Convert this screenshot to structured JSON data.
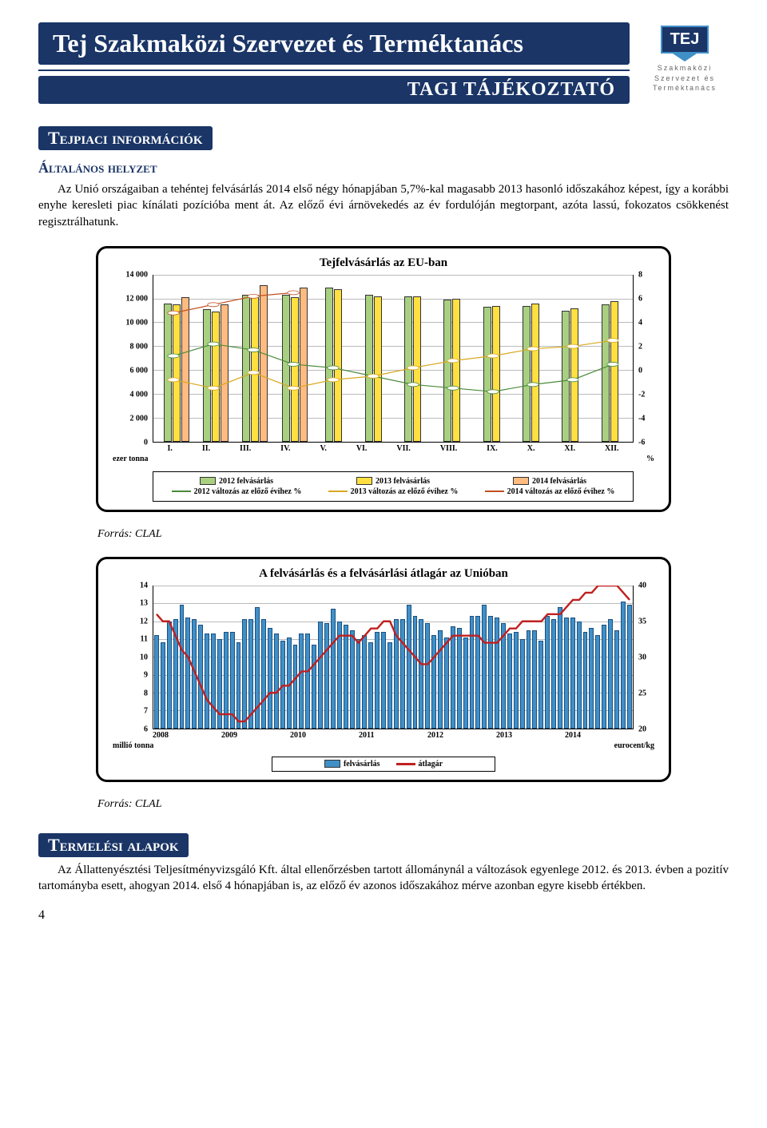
{
  "header": {
    "main_title": "Tej Szakmaközi Szervezet és Terméktanács",
    "subtitle": "TAGI TÁJÉKOZTATÓ",
    "logo_text": "TEJ",
    "logo_sub1": "Szakmaközi",
    "logo_sub2": "Szervezet és",
    "logo_sub3": "Terméktanács"
  },
  "section1": {
    "pill": "Tejpiaci információk",
    "subheading": "Általános helyzet",
    "para": "Az Unió országaiban a tehéntej felvásárlás 2014 első négy hónapjában 5,7%-kal magasabb 2013 hasonló időszakához képest, így a korábbi enyhe keresleti piac kínálati pozícióba ment át. Az előző évi árnövekedés az év fordulóján megtorpant, azóta lassú, fokozatos csökkenést regisztrálhatunk."
  },
  "chart1": {
    "title": "Tejfelvásárlás az EU-ban",
    "months": [
      "I.",
      "II.",
      "III.",
      "IV.",
      "V.",
      "VI.",
      "VII.",
      "VIII.",
      "IX.",
      "X.",
      "XI.",
      "XII."
    ],
    "y_left": {
      "min": 0,
      "max": 14000,
      "ticks": [
        0,
        2000,
        4000,
        6000,
        8000,
        10000,
        12000,
        14000
      ],
      "labels": [
        "0",
        "2 000",
        "4 000",
        "6 000",
        "8 000",
        "10 000",
        "12 000",
        "14 000"
      ],
      "unit": "ezer tonna"
    },
    "y_right": {
      "min": -6,
      "max": 8,
      "ticks": [
        -6,
        -4,
        -2,
        0,
        2,
        4,
        6,
        8
      ],
      "unit": "%"
    },
    "bars_2012": [
      11600,
      11100,
      12300,
      12300,
      12900,
      12300,
      12200,
      11900,
      11300,
      11400,
      11000,
      11500
    ],
    "bars_2013": [
      11500,
      10900,
      12300,
      12100,
      12800,
      12200,
      12200,
      12000,
      11400,
      11600,
      11200,
      11800
    ],
    "bars_2014": [
      12100,
      11500,
      13100,
      12900,
      null,
      null,
      null,
      null,
      null,
      null,
      null,
      null
    ],
    "line_2012_color": "#4a8a3a",
    "line_2013_color": "#d8a820",
    "line_2014_color": "#c05020",
    "line_2012": [
      1.2,
      2.2,
      1.7,
      0.5,
      0.2,
      -0.5,
      -1.2,
      -1.5,
      -1.8,
      -1.2,
      -0.8,
      0.5
    ],
    "line_2013": [
      -0.8,
      -1.5,
      -0.2,
      -1.5,
      -0.8,
      -0.5,
      0.2,
      0.8,
      1.2,
      1.8,
      2.0,
      2.5
    ],
    "line_2014": [
      4.8,
      5.5,
      6.2,
      6.5,
      null,
      null,
      null,
      null,
      null,
      null,
      null,
      null
    ],
    "legend": {
      "row1": [
        "2012 felvásárlás",
        "2013 felvásárlás",
        "2014 felvásárlás"
      ],
      "row2": [
        "2012 változás az előző évihez %",
        "2013 változás az előző évihez %",
        "2014 változás az előző évihez %"
      ]
    },
    "bar_colors": {
      "b2012": "#a8d080",
      "b2013": "#ffe040",
      "b2014": "#ffbb80"
    },
    "source": "Forrás: CLAL"
  },
  "chart2": {
    "title": "A felvásárlás és a felvásárlási átlagár az Unióban",
    "y_left": {
      "min": 6,
      "max": 14,
      "ticks": [
        6,
        7,
        8,
        9,
        10,
        11,
        12,
        13,
        14
      ],
      "unit": "millió tonna"
    },
    "y_right": {
      "min": 20,
      "max": 40,
      "ticks": [
        20,
        25,
        30,
        35,
        40
      ],
      "unit": "eurocent/kg"
    },
    "x_years": [
      "2008",
      "2009",
      "2010",
      "2011",
      "2012",
      "2013",
      "2014"
    ],
    "bar_color": "#4090c8",
    "line_color": "#c02020",
    "bars": [
      11.2,
      10.8,
      12.0,
      12.1,
      12.9,
      12.2,
      12.1,
      11.8,
      11.3,
      11.3,
      11.0,
      11.4,
      11.4,
      10.8,
      12.1,
      12.1,
      12.8,
      12.1,
      11.6,
      11.3,
      10.9,
      11.1,
      10.7,
      11.3,
      11.3,
      10.7,
      12.0,
      11.9,
      12.7,
      12.0,
      11.8,
      11.5,
      11.0,
      11.2,
      10.8,
      11.4,
      11.4,
      10.8,
      12.1,
      12.1,
      12.9,
      12.3,
      12.1,
      11.9,
      11.2,
      11.5,
      11.1,
      11.7,
      11.6,
      11.1,
      12.3,
      12.3,
      12.9,
      12.3,
      12.2,
      11.9,
      11.3,
      11.4,
      11.0,
      11.5,
      11.5,
      10.9,
      12.3,
      12.1,
      12.8,
      12.2,
      12.2,
      12.0,
      11.4,
      11.6,
      11.2,
      11.8,
      12.1,
      11.5,
      13.1,
      12.9
    ],
    "line": [
      36,
      35,
      35,
      33,
      31,
      30,
      28,
      26,
      24,
      23,
      22,
      22,
      22,
      21,
      21,
      22,
      23,
      24,
      25,
      25,
      26,
      26,
      27,
      28,
      28,
      29,
      30,
      31,
      32,
      33,
      33,
      33,
      32,
      33,
      34,
      34,
      35,
      35,
      33,
      32,
      31,
      30,
      29,
      29,
      30,
      31,
      32,
      33,
      33,
      33,
      33,
      33,
      32,
      32,
      32,
      33,
      34,
      34,
      35,
      35,
      35,
      35,
      36,
      36,
      36,
      37,
      38,
      38,
      39,
      39,
      40,
      40,
      40,
      40,
      39,
      38
    ],
    "legend": [
      "felvásárlás",
      "átlagár"
    ],
    "source": "Forrás: CLAL"
  },
  "section2": {
    "pill": "Termelési alapok",
    "para": "Az Állattenyésztési Teljesítményvizsgáló Kft. által ellenőrzésben tartott állománynál a változások egyenlege 2012. és 2013. évben a pozitív tartományba esett, ahogyan 2014. első 4 hónapjában is, az előző év azonos időszakához mérve azonban egyre kisebb értékben."
  },
  "page_number": "4"
}
